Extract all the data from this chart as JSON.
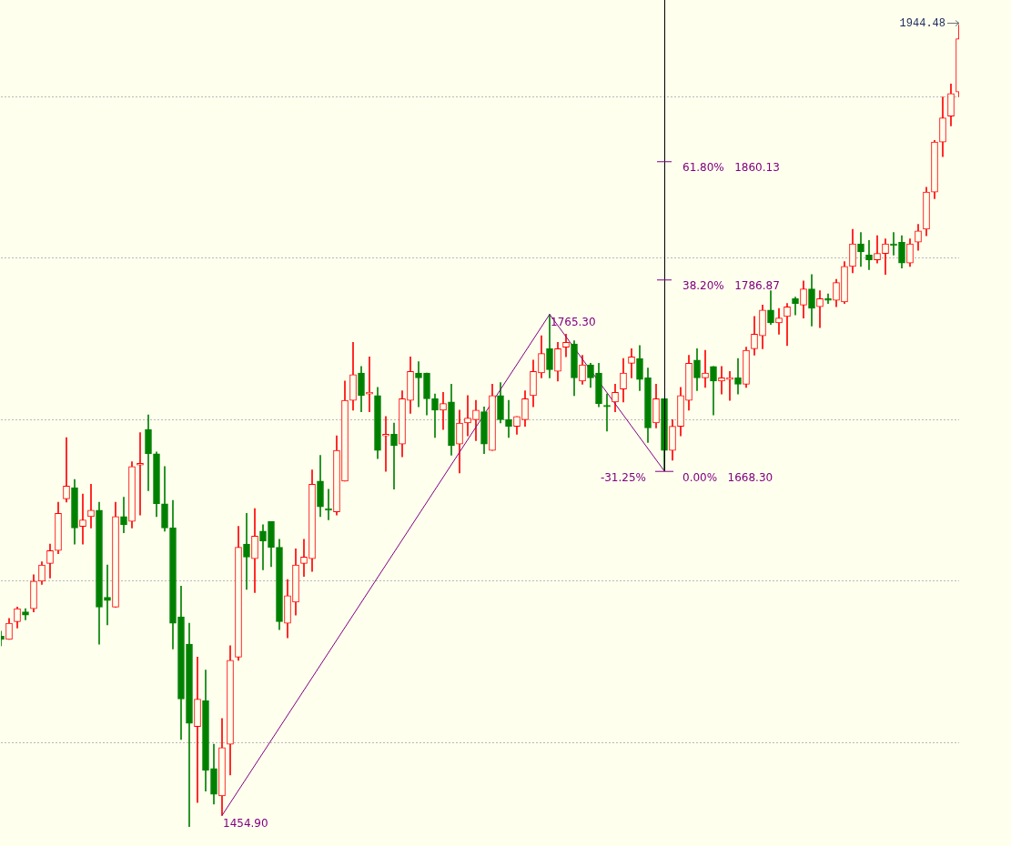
{
  "chart_data": {
    "type": "candlestick",
    "categories": [
      null,
      null,
      null,
      null,
      null,
      null,
      null,
      null,
      null,
      null,
      null,
      null,
      null,
      null,
      null,
      null,
      null,
      null,
      null,
      null,
      null,
      null,
      null,
      null,
      null,
      null,
      null,
      null,
      null,
      null,
      null,
      null,
      null,
      null,
      null,
      null,
      null,
      null,
      null,
      null,
      null,
      null,
      null,
      null,
      null,
      null,
      null,
      null,
      null,
      null,
      null,
      null,
      null,
      null,
      null,
      null,
      null,
      null,
      null,
      null,
      null,
      null,
      null,
      null,
      null,
      null,
      null,
      null,
      null,
      null,
      null,
      null,
      null,
      null,
      null,
      null,
      null,
      null,
      null,
      null,
      null,
      null,
      null,
      null,
      null,
      null,
      null,
      null,
      null,
      null,
      null,
      null,
      null,
      null,
      null,
      null,
      null,
      null,
      null,
      null,
      null,
      null,
      null,
      null,
      null,
      null,
      null,
      null,
      null,
      null,
      null,
      null,
      null,
      null,
      null,
      null,
      null,
      null
    ],
    "ylim": [
      1436,
      1960
    ],
    "yticks": [
      {
        "value": 1500,
        "label": null
      },
      {
        "value": 1600,
        "label": null
      },
      {
        "value": 1700,
        "label": null
      },
      {
        "value": 1800,
        "label": null
      },
      {
        "value": 1900,
        "label": null
      }
    ],
    "grid": "y",
    "tick_labels": false,
    "legend": false,
    "series": [
      {
        "ohlc": [
          [
            1566,
            1569,
            1560,
            1564
          ],
          [
            1564,
            1577,
            1564,
            1574
          ],
          [
            1575,
            1584,
            1571,
            1583
          ],
          [
            1581,
            1583,
            1576,
            1579
          ],
          [
            1583,
            1604,
            1581,
            1600
          ],
          [
            1600,
            1612,
            1598,
            1610
          ],
          [
            1611,
            1623,
            1602,
            1619
          ],
          [
            1619,
            1649,
            1617,
            1642
          ],
          [
            1651,
            1689,
            1649,
            1659
          ],
          [
            1658,
            1663,
            1623,
            1633
          ],
          [
            1634,
            1654,
            1623,
            1638
          ],
          [
            1640,
            1660,
            1633,
            1644
          ],
          [
            1644,
            1649,
            1561,
            1584
          ],
          [
            1590,
            1610,
            1573,
            1588
          ],
          [
            1584,
            1649,
            1584,
            1640
          ],
          [
            1640,
            1652,
            1630,
            1635
          ],
          [
            1637,
            1674,
            1633,
            1671
          ],
          [
            1672,
            1692,
            1641,
            1673
          ],
          [
            1694,
            1703,
            1656,
            1679
          ],
          [
            1679,
            1680,
            1640,
            1648
          ],
          [
            1648,
            1671,
            1631,
            1633
          ],
          [
            1633,
            1650,
            1558,
            1574
          ],
          [
            1578,
            1597,
            1502,
            1527
          ],
          [
            1561,
            1574,
            1448,
            1512
          ],
          [
            1510,
            1553,
            1463,
            1527
          ],
          [
            1526,
            1545,
            1470,
            1483
          ],
          [
            1484,
            1499,
            1462,
            1468
          ],
          [
            1467,
            1515,
            1454.9,
            1497
          ],
          [
            1499,
            1560,
            1480,
            1551
          ],
          [
            1553,
            1634,
            1551,
            1621
          ],
          [
            1623,
            1642,
            1595,
            1615
          ],
          [
            1614,
            1645,
            1593,
            1628
          ],
          [
            1631,
            1635,
            1607,
            1625
          ],
          [
            1637,
            1637,
            1609,
            1621
          ],
          [
            1621,
            1626,
            1570,
            1575
          ],
          [
            1574,
            1601,
            1565,
            1591
          ],
          [
            1587,
            1620,
            1579,
            1610
          ],
          [
            1611,
            1626,
            1603,
            1615
          ],
          [
            1614,
            1669,
            1606,
            1660
          ],
          [
            1662,
            1678,
            1640,
            1646
          ],
          [
            1645,
            1657,
            1638,
            1644
          ],
          [
            1643,
            1690,
            1641,
            1681
          ],
          [
            1662,
            1724,
            1662,
            1712
          ],
          [
            1712,
            1748,
            1706,
            1728
          ],
          [
            1729,
            1733,
            1705,
            1715
          ],
          [
            1716,
            1739,
            1705,
            1717
          ],
          [
            1715,
            1720,
            1676,
            1681
          ],
          [
            1690,
            1702,
            1668,
            1691
          ],
          [
            1691,
            1698,
            1657,
            1684
          ],
          [
            1685,
            1718,
            1677,
            1713
          ],
          [
            1712,
            1739,
            1704,
            1730
          ],
          [
            1729,
            1736,
            1708,
            1726
          ],
          [
            1729,
            1729,
            1703,
            1713
          ],
          [
            1713,
            1716,
            1689,
            1706
          ],
          [
            1706,
            1717,
            1694,
            1710
          ],
          [
            1711,
            1722,
            1678,
            1684
          ],
          [
            1685,
            1706,
            1667,
            1698
          ],
          [
            1698,
            1715,
            1690,
            1701
          ],
          [
            1700,
            1712,
            1687,
            1706
          ],
          [
            1705,
            1708,
            1679,
            1685
          ],
          [
            1681,
            1722,
            1681,
            1715
          ],
          [
            1715,
            1723,
            1698,
            1700
          ],
          [
            1700,
            1712,
            1689,
            1696
          ],
          [
            1696,
            1702,
            1691,
            1702
          ],
          [
            1700,
            1718,
            1696,
            1713
          ],
          [
            1715,
            1737,
            1708,
            1730
          ],
          [
            1729,
            1752,
            1726,
            1741
          ],
          [
            1744,
            1765.3,
            1726,
            1731
          ],
          [
            1730,
            1748,
            1724,
            1744
          ],
          [
            1745,
            1753,
            1739,
            1748
          ],
          [
            1747,
            1749,
            1715,
            1726
          ],
          [
            1724,
            1740,
            1722,
            1734
          ],
          [
            1734,
            1735,
            1720,
            1726
          ],
          [
            1729,
            1735,
            1708,
            1710
          ],
          [
            1709,
            1716,
            1693,
            1708
          ],
          [
            1711,
            1722,
            1705,
            1717
          ],
          [
            1719,
            1738,
            1711,
            1729
          ],
          [
            1735,
            1744,
            1726,
            1739
          ],
          [
            1738,
            1746,
            1718,
            1725
          ],
          [
            1726,
            1732,
            1686,
            1695
          ],
          [
            1698,
            1722,
            1695,
            1713
          ],
          [
            1713,
            1713,
            1668.3,
            1681
          ],
          [
            1681,
            1700,
            1675,
            1696
          ],
          [
            1696,
            1720,
            1690,
            1715
          ],
          [
            1712,
            1740,
            1706,
            1735
          ],
          [
            1737,
            1744,
            1718,
            1726
          ],
          [
            1726,
            1743,
            1720,
            1729
          ],
          [
            1733,
            1733,
            1703,
            1724
          ],
          [
            1724,
            1733,
            1716,
            1726
          ],
          [
            1725,
            1730,
            1712,
            1726
          ],
          [
            1726,
            1738,
            1716,
            1722
          ],
          [
            1722,
            1745,
            1720,
            1743
          ],
          [
            1744,
            1764,
            1740,
            1753
          ],
          [
            1752,
            1771,
            1744,
            1768
          ],
          [
            1768,
            1780,
            1759,
            1760
          ],
          [
            1760,
            1769,
            1753,
            1763
          ],
          [
            1764,
            1772,
            1746,
            1770
          ],
          [
            1775,
            1776,
            1765,
            1772
          ],
          [
            1771,
            1786,
            1763,
            1781
          ],
          [
            1781,
            1790,
            1758,
            1769
          ],
          [
            1770,
            1780,
            1757,
            1775
          ],
          [
            1775,
            1778,
            1772,
            1774
          ],
          [
            1774,
            1787,
            1770,
            1785
          ],
          [
            1773,
            1798,
            1772,
            1795
          ],
          [
            1795,
            1818,
            1791,
            1809
          ],
          [
            1809,
            1816,
            1795,
            1804
          ],
          [
            1802,
            1811,
            1793,
            1799
          ],
          [
            1799,
            1814,
            1797,
            1803
          ],
          [
            1803,
            1812,
            1790,
            1809
          ],
          [
            1809,
            1816,
            1802,
            1808
          ],
          [
            1810,
            1814,
            1794,
            1797
          ],
          [
            1797,
            1812,
            1795,
            1809
          ],
          [
            1810,
            1821,
            1805,
            1817
          ],
          [
            1818,
            1844,
            1814,
            1841
          ],
          [
            1841,
            1873,
            1837,
            1872
          ],
          [
            1872,
            1900,
            1863,
            1887
          ],
          [
            1888,
            1908,
            1882,
            1902
          ],
          [
            1903,
            1944.48,
            1900,
            1936
          ]
        ],
        "colors": [
          "#008000",
          "#ff0000",
          "#ff0000",
          "#008000",
          "#ff0000",
          "#ff0000",
          "#ff0000",
          "#ff0000",
          "#ff0000",
          "#008000",
          "#ff0000",
          "#ff0000",
          "#008000",
          "#008000",
          "#ff0000",
          "#008000",
          "#ff0000",
          "#ff0000",
          "#008000",
          "#008000",
          "#008000",
          "#008000",
          "#008000",
          "#008000",
          "#ff0000",
          "#008000",
          "#008000",
          "#ff0000",
          "#ff0000",
          "#ff0000",
          "#008000",
          "#ff0000",
          "#008000",
          "#008000",
          "#008000",
          "#ff0000",
          "#ff0000",
          "#ff0000",
          "#ff0000",
          "#008000",
          "#008000",
          "#ff0000",
          "#ff0000",
          "#ff0000",
          "#008000",
          "#ff0000",
          "#008000",
          "#ff0000",
          "#008000",
          "#ff0000",
          "#ff0000",
          "#008000",
          "#008000",
          "#008000",
          "#ff0000",
          "#008000",
          "#ff0000",
          "#ff0000",
          "#ff0000",
          "#008000",
          "#ff0000",
          "#008000",
          "#008000",
          "#ff0000",
          "#ff0000",
          "#ff0000",
          "#ff0000",
          "#008000",
          "#ff0000",
          "#ff0000",
          "#008000",
          "#ff0000",
          "#008000",
          "#008000",
          "#008000",
          "#ff0000",
          "#ff0000",
          "#ff0000",
          "#008000",
          "#008000",
          "#ff0000",
          "#008000",
          "#ff0000",
          "#ff0000",
          "#ff0000",
          "#008000",
          "#ff0000",
          "#008000",
          "#ff0000",
          "#ff0000",
          "#008000",
          "#ff0000",
          "#ff0000",
          "#ff0000",
          "#008000",
          "#ff0000",
          "#ff0000",
          "#008000",
          "#ff0000",
          "#008000",
          "#ff0000",
          "#008000",
          "#ff0000",
          "#ff0000",
          "#ff0000",
          "#008000",
          "#008000",
          "#ff0000",
          "#ff0000",
          "#008000",
          "#008000",
          "#ff0000",
          "#ff0000",
          "#ff0000",
          "#ff0000",
          "#ff0000",
          "#ff0000",
          "#ff0000"
        ]
      },
      {
        "type": "line",
        "color": "#800080",
        "values": [
          null,
          null,
          null,
          null,
          null,
          null,
          null,
          null,
          null,
          null,
          null,
          null,
          null,
          null,
          null,
          null,
          null,
          null,
          null,
          null,
          null,
          null,
          null,
          null,
          null,
          null,
          null,
          1454.9,
          null,
          null,
          null,
          null,
          null,
          null,
          null,
          null,
          null,
          null,
          null,
          null,
          null,
          null,
          null,
          null,
          null,
          null,
          null,
          null,
          null,
          null,
          null,
          null,
          null,
          null,
          null,
          null,
          null,
          null,
          null,
          null,
          null,
          null,
          null,
          null,
          null,
          null,
          null,
          1765.3,
          null,
          null,
          null,
          null,
          null,
          null,
          null,
          null,
          null,
          null,
          null,
          null,
          null,
          1668.3,
          null,
          null,
          null,
          null,
          null,
          null,
          null,
          null,
          null,
          null,
          null,
          null,
          null,
          null,
          null,
          null,
          null,
          null,
          null,
          null,
          null,
          null,
          null,
          null,
          null,
          null,
          null,
          null,
          null,
          null,
          null,
          null,
          null,
          null,
          null,
          null
        ],
        "value_labels": [
          null,
          null,
          null,
          null,
          null,
          null,
          null,
          null,
          null,
          null,
          null,
          null,
          null,
          null,
          null,
          null,
          null,
          null,
          null,
          null,
          null,
          null,
          null,
          null,
          null,
          null,
          null,
          "1454.90",
          null,
          null,
          null,
          null,
          null,
          null,
          null,
          null,
          null,
          null,
          null,
          null,
          null,
          null,
          null,
          null,
          null,
          null,
          null,
          null,
          null,
          null,
          null,
          null,
          null,
          null,
          null,
          null,
          null,
          null,
          null,
          null,
          null,
          null,
          null,
          null,
          null,
          null,
          null,
          "1765.30",
          null,
          null,
          null,
          null,
          null,
          null,
          null,
          null,
          null,
          null,
          null,
          null,
          null,
          null,
          null,
          null,
          null,
          null,
          null,
          null,
          null,
          null,
          null,
          null,
          null,
          null,
          null,
          null,
          null,
          null,
          null,
          null,
          null,
          null,
          null,
          null,
          null,
          null,
          null,
          null,
          null,
          null,
          null,
          null,
          null,
          null,
          null,
          null,
          null,
          null
        ]
      }
    ],
    "ref_lines": [
      {
        "axis": "y",
        "value": 1860.13,
        "label": "61.80%   1860.13"
      },
      {
        "axis": "y",
        "value": 1786.87,
        "label": "38.20%   1786.87"
      },
      {
        "axis": "y",
        "value": 1668.3,
        "label": "0.00%   1668.30"
      }
    ],
    "annotations": [
      "-31.25%",
      "1944.48"
    ]
  }
}
